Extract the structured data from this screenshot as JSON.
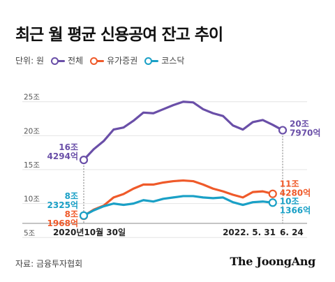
{
  "title": "최근 월 평균 신용공여 잔고 추이",
  "legend": {
    "unit": "단위: 원",
    "items": [
      {
        "label": "전체",
        "color": "#6a4fa8"
      },
      {
        "label": "유가증권",
        "color": "#ef5a2a"
      },
      {
        "label": "코스닥",
        "color": "#1aa0c6"
      }
    ]
  },
  "source": "자료: 금융투자협회",
  "brand": "The JoongAng",
  "chart_data": {
    "type": "line",
    "ylim": [
      4,
      26
    ],
    "yticks": [
      {
        "value": 5,
        "label": "5조"
      },
      {
        "value": 10,
        "label": "10조"
      },
      {
        "value": 15,
        "label": "15조"
      },
      {
        "value": 20,
        "label": "20조"
      },
      {
        "value": 25,
        "label": "25조"
      }
    ],
    "xlim": [
      0,
      20
    ],
    "x_labels": [
      {
        "x": 0,
        "label": "2020년10월 30일"
      },
      {
        "x": 19,
        "label": "2022. 5. 31"
      },
      {
        "x": 20,
        "label": "6. 24"
      }
    ],
    "series": [
      {
        "name": "전체",
        "color": "#6a4fa8",
        "x": [
          0,
          1,
          2,
          3,
          4,
          5,
          6,
          7,
          8,
          9,
          10,
          11,
          12,
          13,
          14,
          15,
          16,
          17,
          18,
          19,
          20
        ],
        "values": [
          16.43,
          18.0,
          19.2,
          20.9,
          21.2,
          22.2,
          23.4,
          23.3,
          23.9,
          24.5,
          25.0,
          24.9,
          23.9,
          23.3,
          22.9,
          21.5,
          20.9,
          22.0,
          22.3,
          21.6,
          20.8
        ],
        "start_labels": [
          "16조",
          "4294억"
        ],
        "end_labels": [
          "20조",
          "7970억"
        ]
      },
      {
        "name": "유가증권",
        "color": "#ef5a2a",
        "x": [
          0,
          1,
          2,
          3,
          4,
          5,
          6,
          7,
          8,
          9,
          10,
          11,
          12,
          13,
          14,
          15,
          16,
          17,
          18,
          19
        ],
        "values": [
          8.2,
          9.1,
          9.7,
          10.9,
          11.4,
          12.2,
          12.8,
          12.8,
          13.1,
          13.3,
          13.4,
          13.3,
          12.8,
          12.2,
          11.8,
          11.3,
          10.9,
          11.7,
          11.8,
          11.43
        ],
        "start_labels": [
          "8조",
          "1968억"
        ],
        "end_labels": [
          "11조",
          "4280억"
        ]
      },
      {
        "name": "코스닥",
        "color": "#1aa0c6",
        "x": [
          0,
          1,
          2,
          3,
          4,
          5,
          6,
          7,
          8,
          9,
          10,
          11,
          12,
          13,
          14,
          15,
          16,
          17,
          18,
          19
        ],
        "values": [
          8.23,
          9.0,
          9.6,
          10.0,
          9.8,
          10.0,
          10.5,
          10.3,
          10.7,
          10.9,
          11.1,
          11.1,
          10.9,
          10.8,
          10.9,
          10.2,
          9.8,
          10.2,
          10.3,
          10.14
        ],
        "start_labels": [
          "8조",
          "2325억"
        ],
        "end_labels": [
          "10조",
          "1366억"
        ]
      }
    ]
  }
}
